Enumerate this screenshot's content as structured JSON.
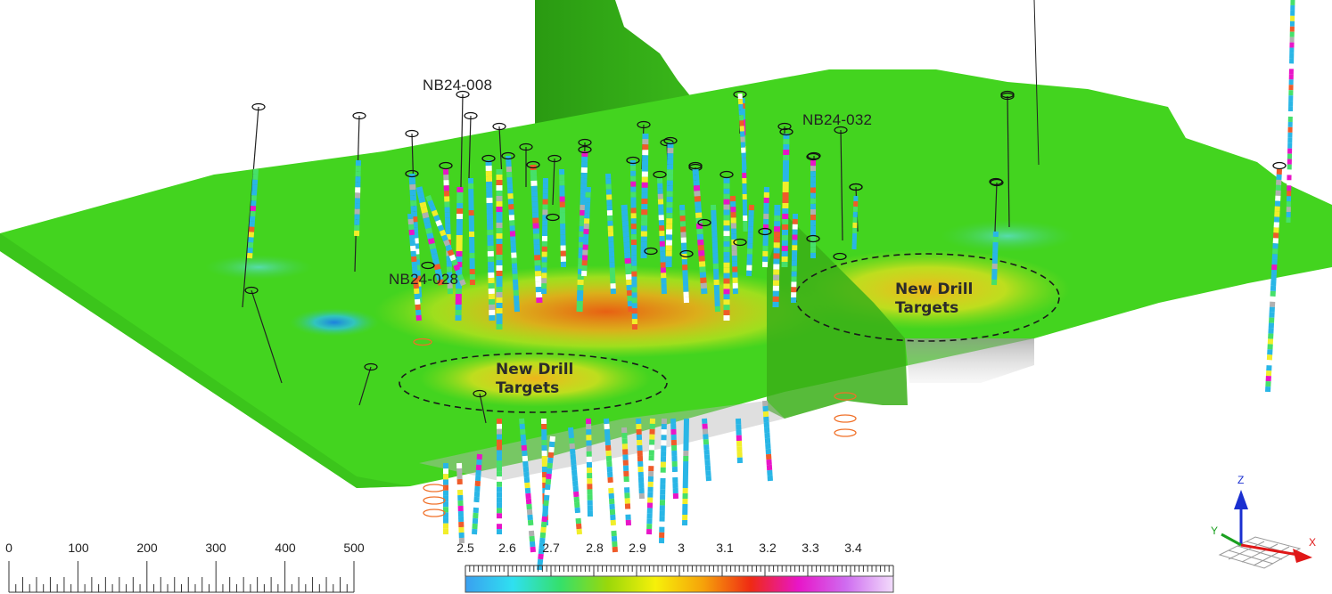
{
  "hole_labels": [
    {
      "id": "nb24-008",
      "text": "NB24-008"
    },
    {
      "id": "nb24-032",
      "text": "NB24-032"
    },
    {
      "id": "nb24-028",
      "text": "NB24-028"
    }
  ],
  "targets": [
    {
      "id": "right",
      "line1": "New Drill",
      "line2": "Targets"
    },
    {
      "id": "left",
      "line1": "New Drill",
      "line2": "Targets"
    }
  ],
  "scale_bar": {
    "ticks": [
      "0",
      "100",
      "200",
      "300",
      "400",
      "500"
    ]
  },
  "color_bar": {
    "ticks": [
      "2.5",
      "2.6",
      "2.7",
      "2.8",
      "2.9",
      "3",
      "3.1",
      "3.2",
      "3.3",
      "3.4"
    ],
    "stops": [
      "#3aa0f0",
      "#2fe0f0",
      "#35e06a",
      "#9ad80a",
      "#f6f00a",
      "#f6a20a",
      "#ef2a14",
      "#e815c8",
      "#cf6cf0",
      "#f2dcfb"
    ]
  },
  "axes": {
    "x": "X",
    "y": "Y",
    "z": "Z"
  },
  "colors": {
    "surface": "#3fd41c",
    "section": "#2f9e14",
    "drill_log_palette": [
      "#29b6e6",
      "#46e06a",
      "#f1ee2a",
      "#ef5b2a",
      "#e815c8",
      "#ffffff",
      "#b0b0b0",
      "#8c4b1f"
    ]
  }
}
